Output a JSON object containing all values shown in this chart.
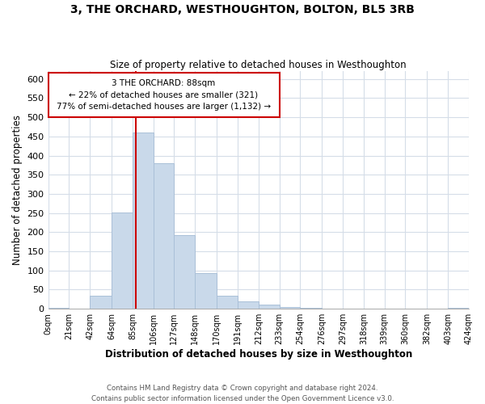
{
  "title": "3, THE ORCHARD, WESTHOUGHTON, BOLTON, BL5 3RB",
  "subtitle": "Size of property relative to detached houses in Westhoughton",
  "xlabel": "Distribution of detached houses by size in Westhoughton",
  "ylabel": "Number of detached properties",
  "bin_edges": [
    0,
    21,
    42,
    64,
    85,
    106,
    127,
    148,
    170,
    191,
    212,
    233,
    254,
    276,
    297,
    318,
    339,
    360,
    382,
    403,
    424
  ],
  "bin_counts": [
    2,
    0,
    35,
    252,
    460,
    381,
    192,
    93,
    35,
    20,
    11,
    4,
    2,
    0,
    0,
    0,
    0,
    0,
    0,
    2
  ],
  "bar_color": "#c9d9ea",
  "bar_edge_color": "#aac0d8",
  "grid_color": "#d5dde8",
  "property_line_x": 88,
  "property_line_color": "#cc0000",
  "ann_line1": "3 THE ORCHARD: 88sqm",
  "ann_line2": "← 22% of detached houses are smaller (321)",
  "ann_line3": "77% of semi-detached houses are larger (1,132) →",
  "ylim": [
    0,
    620
  ],
  "yticks": [
    0,
    50,
    100,
    150,
    200,
    250,
    300,
    350,
    400,
    450,
    500,
    550,
    600
  ],
  "tick_labels": [
    "0sqm",
    "21sqm",
    "42sqm",
    "64sqm",
    "85sqm",
    "106sqm",
    "127sqm",
    "148sqm",
    "170sqm",
    "191sqm",
    "212sqm",
    "233sqm",
    "254sqm",
    "276sqm",
    "297sqm",
    "318sqm",
    "339sqm",
    "360sqm",
    "382sqm",
    "403sqm",
    "424sqm"
  ],
  "footer_line1": "Contains HM Land Registry data © Crown copyright and database right 2024.",
  "footer_line2": "Contains public sector information licensed under the Open Government Licence v3.0.",
  "background_color": "#ffffff",
  "fig_width": 6.0,
  "fig_height": 5.0,
  "dpi": 100
}
